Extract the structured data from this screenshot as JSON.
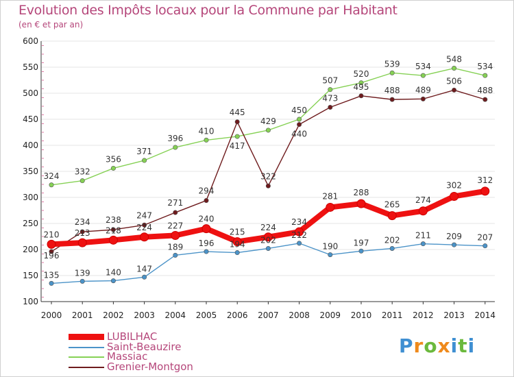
{
  "title": "Evolution des Impôts locaux pour la Commune par Habitant",
  "subtitle": "(en € et par an)",
  "logo": {
    "letters": [
      {
        "ch": "P",
        "color": "#3f8fd2"
      },
      {
        "ch": "r",
        "color": "#ef8a1c"
      },
      {
        "ch": "o",
        "color": "#6bb93d"
      },
      {
        "ch": "x",
        "color": "#ef8a1c"
      },
      {
        "ch": "i",
        "color": "#3f8fd2"
      },
      {
        "ch": "t",
        "color": "#6bb93d"
      },
      {
        "ch": "i",
        "color": "#3f8fd2"
      }
    ]
  },
  "chart_data": {
    "type": "line",
    "title": "Evolution des Impôts locaux pour la Commune par Habitant",
    "subtitle": "(en € et par an)",
    "xlabel": "",
    "ylabel": "",
    "x": [
      "2000",
      "2001",
      "2002",
      "2003",
      "2004",
      "2005",
      "2006",
      "2007",
      "2008",
      "2009",
      "2010",
      "2011",
      "2012",
      "2013",
      "2014"
    ],
    "ylim": [
      100,
      600
    ],
    "yticks": [
      100,
      150,
      200,
      250,
      300,
      350,
      400,
      450,
      500,
      550,
      600
    ],
    "grid": "horizontal",
    "legend": "bottom-left",
    "series": [
      {
        "name": "Saint-Beauzire",
        "color": "#4b93c8",
        "values": [
          135,
          139,
          140,
          147,
          189,
          196,
          194,
          202,
          212,
          190,
          197,
          202,
          211,
          209,
          207
        ]
      },
      {
        "name": "Massiac",
        "color": "#86d155",
        "values": [
          324,
          332,
          356,
          371,
          396,
          410,
          417,
          429,
          450,
          507,
          520,
          539,
          534,
          548,
          534
        ]
      },
      {
        "name": "Grenier-Montgon",
        "color": "#6e1b1d",
        "values": [
          196,
          234,
          238,
          247,
          271,
          294,
          445,
          322,
          440,
          473,
          495,
          488,
          489,
          506,
          488
        ]
      },
      {
        "name": "LUBILHAC",
        "color": "#ee1111",
        "values": [
          210,
          213,
          218,
          224,
          227,
          240,
          215,
          224,
          234,
          281,
          288,
          265,
          274,
          302,
          312
        ]
      }
    ],
    "labels": {
      "Saint-Beauzire": [
        "135",
        "139",
        "140",
        "147",
        "189",
        "196",
        "194",
        "202",
        "212",
        "190",
        "197",
        "202",
        "211",
        "209",
        "207"
      ],
      "Massiac": [
        "324",
        "332",
        "356",
        "371",
        "396",
        "410",
        "417",
        "429",
        "450",
        "507",
        "520",
        "539",
        "534",
        "548",
        "534"
      ],
      "Grenier-Montgon": [
        "196",
        "234",
        "238",
        "247",
        "271",
        "294",
        "445",
        "322",
        "440",
        "473",
        "495",
        "488",
        "489",
        "506",
        "488"
      ],
      "LUBILHAC": [
        "210",
        "213",
        "218",
        "224",
        "227",
        "240",
        "215",
        "224",
        "234",
        "281",
        "288",
        "265",
        "274",
        "302",
        "312"
      ]
    }
  },
  "legend": [
    {
      "name": "LUBILHAC",
      "color": "#ee1111",
      "weight": "bold"
    },
    {
      "name": "Saint-Beauzire",
      "color": "#4b93c8",
      "weight": "normal"
    },
    {
      "name": "Massiac",
      "color": "#86d155",
      "weight": "normal"
    },
    {
      "name": "Grenier-Montgon",
      "color": "#6e1b1d",
      "weight": "normal"
    }
  ]
}
